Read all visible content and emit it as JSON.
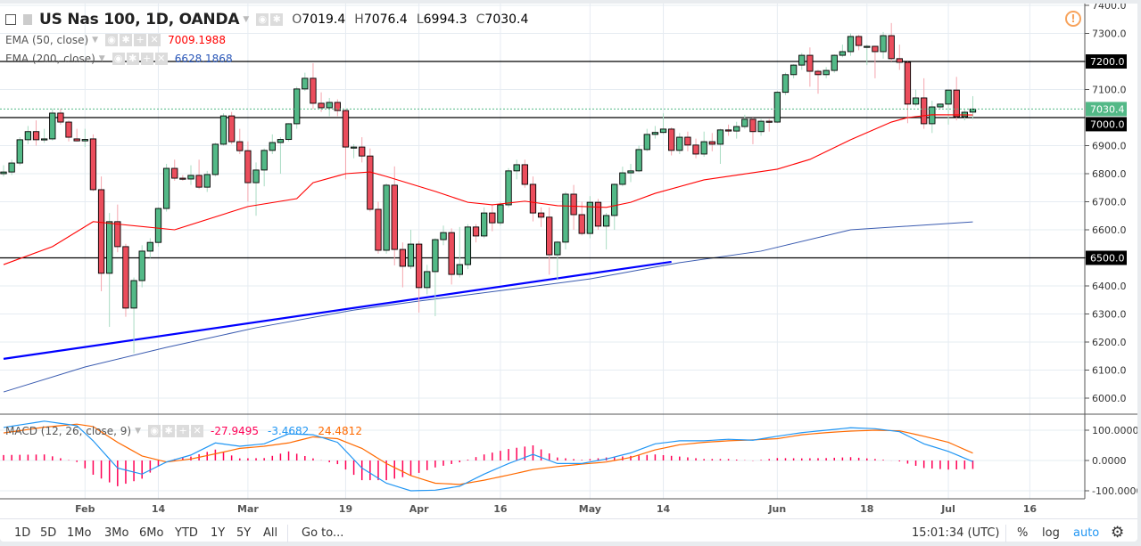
{
  "header": {
    "title": "US Nas 100, 1D, OANDA",
    "ohlc": {
      "o_label": "O",
      "o": "7019.4",
      "h_label": "H",
      "h": "7076.4",
      "l_label": "L",
      "l": "6994.3",
      "c_label": "C",
      "c": "7030.4"
    },
    "indicators": [
      {
        "label": "EMA (50, close)",
        "value": "7009.1988",
        "color": "#ff0000"
      },
      {
        "label": "EMA (200, close)",
        "value": "6628.1868",
        "color": "#2a57b8"
      }
    ],
    "macd": {
      "label": "MACD (12, 26, close, 9)",
      "hist": "-27.9495",
      "macd": "-3.4682",
      "signal": "24.4812",
      "hist_color": "#ff0055",
      "macd_color": "#2196f3",
      "signal_color": "#ff6a00"
    }
  },
  "colors": {
    "up": "#53b987",
    "down": "#eb4d5c",
    "ema50": "#ff0000",
    "ema200": "#3a5bb0",
    "trendline": "#0000ff",
    "macd": "#2196f3",
    "signal": "#ff6a00",
    "hist": "#ff0055",
    "warning": "#f7a35c",
    "accent": "#2196f3"
  },
  "chart_data": {
    "type": "candlestick",
    "price_axis": {
      "range": [
        6000,
        7400
      ],
      "ticks": [
        "7400.0",
        "7300.0",
        "7200.0",
        "7100.0",
        "7000.0",
        "6900.0",
        "6800.0",
        "6700.0",
        "6600.0",
        "6500.0",
        "6400.0",
        "6300.0",
        "6200.0",
        "6100.0",
        "6000.0"
      ]
    },
    "last_price": "7030.4",
    "horizontal_lines": [
      {
        "price": 7200,
        "label": "7200.0"
      },
      {
        "price": 7000,
        "label": "7000.0"
      },
      {
        "price": 6500,
        "label": "6500.0"
      }
    ],
    "time_ticks": [
      {
        "label": "Feb",
        "date": "02-01"
      },
      {
        "label": "14",
        "date": "02-14"
      },
      {
        "label": "Mar",
        "date": "03-01"
      },
      {
        "label": "19",
        "date": "03-19"
      },
      {
        "label": "Apr",
        "date": "04-02"
      },
      {
        "label": "16",
        "date": "04-16"
      },
      {
        "label": "May",
        "date": "05-01"
      },
      {
        "label": "14",
        "date": "05-14"
      },
      {
        "label": "Jun",
        "date": "06-01"
      },
      {
        "label": "18",
        "date": "06-18"
      },
      {
        "label": "Jul",
        "date": "07-02"
      },
      {
        "label": "16",
        "date": "07-16"
      }
    ],
    "candles_columns": [
      "date",
      "open",
      "high",
      "low",
      "close"
    ],
    "candles": [
      [
        "01-18",
        6800,
        6830,
        6790,
        6806
      ],
      [
        "01-19",
        6806,
        6850,
        6795,
        6838
      ],
      [
        "01-22",
        6838,
        6930,
        6830,
        6921
      ],
      [
        "01-23",
        6921,
        6970,
        6905,
        6950
      ],
      [
        "01-24",
        6950,
        6990,
        6900,
        6921
      ],
      [
        "01-25",
        6921,
        6960,
        6910,
        6924
      ],
      [
        "01-26",
        6924,
        7032,
        6918,
        7016
      ],
      [
        "01-29",
        7016,
        7032,
        6975,
        6984
      ],
      [
        "01-30",
        6984,
        6990,
        6915,
        6930
      ],
      [
        "01-31",
        6924,
        6960,
        6915,
        6917
      ],
      [
        "02-01",
        6917,
        6960,
        6895,
        6922
      ],
      [
        "02-02",
        6924,
        6940,
        6738,
        6743
      ],
      [
        "02-05",
        6743,
        6790,
        6381,
        6445
      ],
      [
        "02-06",
        6445,
        6660,
        6254,
        6629
      ],
      [
        "02-07",
        6629,
        6690,
        6520,
        6540
      ],
      [
        "02-08",
        6540,
        6550,
        6290,
        6321
      ],
      [
        "02-09",
        6321,
        6430,
        6160,
        6419
      ],
      [
        "02-12",
        6419,
        6545,
        6395,
        6524
      ],
      [
        "02-13",
        6524,
        6570,
        6500,
        6555
      ],
      [
        "02-14",
        6555,
        6680,
        6540,
        6676
      ],
      [
        "02-15",
        6676,
        6835,
        6665,
        6819
      ],
      [
        "02-16",
        6819,
        6850,
        6775,
        6784
      ],
      [
        "02-19",
        6784,
        6795,
        6775,
        6781
      ],
      [
        "02-20",
        6781,
        6830,
        6760,
        6794
      ],
      [
        "02-21",
        6794,
        6850,
        6745,
        6752
      ],
      [
        "02-22",
        6752,
        6810,
        6735,
        6797
      ],
      [
        "02-23",
        6797,
        6910,
        6790,
        6905
      ],
      [
        "02-26",
        6905,
        7015,
        6900,
        7006
      ],
      [
        "02-27",
        7006,
        7020,
        6905,
        6914
      ],
      [
        "02-28",
        6914,
        6960,
        6870,
        6882
      ],
      [
        "03-01",
        6882,
        6915,
        6700,
        6768
      ],
      [
        "03-02",
        6768,
        6840,
        6650,
        6813
      ],
      [
        "03-05",
        6813,
        6890,
        6755,
        6883
      ],
      [
        "03-06",
        6883,
        6940,
        6870,
        6911
      ],
      [
        "03-07",
        6911,
        6930,
        6800,
        6922
      ],
      [
        "03-08",
        6922,
        6980,
        6915,
        6978
      ],
      [
        "03-09",
        6978,
        7110,
        6960,
        7102
      ],
      [
        "03-12",
        7102,
        7160,
        7095,
        7140
      ],
      [
        "03-13",
        7140,
        7194,
        7030,
        7051
      ],
      [
        "03-14",
        7051,
        7090,
        7020,
        7035
      ],
      [
        "03-15",
        7035,
        7070,
        7005,
        7054
      ],
      [
        "03-16",
        7054,
        7065,
        7005,
        7025
      ],
      [
        "03-19",
        7025,
        7030,
        6780,
        6895
      ],
      [
        "03-20",
        6895,
        6905,
        6855,
        6895
      ],
      [
        "03-21",
        6895,
        6930,
        6840,
        6863
      ],
      [
        "03-22",
        6863,
        6890,
        6665,
        6673
      ],
      [
        "03-23",
        6673,
        6700,
        6515,
        6527
      ],
      [
        "03-26",
        6527,
        6765,
        6515,
        6759
      ],
      [
        "03-27",
        6759,
        6826,
        6473,
        6530
      ],
      [
        "03-28",
        6530,
        6555,
        6395,
        6470
      ],
      [
        "03-29",
        6470,
        6600,
        6460,
        6549
      ],
      [
        "04-02",
        6549,
        6560,
        6305,
        6394
      ],
      [
        "04-03",
        6394,
        6475,
        6370,
        6451
      ],
      [
        "04-04",
        6451,
        6570,
        6292,
        6565
      ],
      [
        "04-05",
        6565,
        6615,
        6545,
        6590
      ],
      [
        "04-06",
        6590,
        6605,
        6405,
        6441
      ],
      [
        "04-09",
        6441,
        6610,
        6430,
        6476
      ],
      [
        "04-10",
        6476,
        6620,
        6460,
        6610
      ],
      [
        "04-11",
        6610,
        6620,
        6555,
        6578
      ],
      [
        "04-12",
        6578,
        6680,
        6570,
        6660
      ],
      [
        "04-13",
        6660,
        6690,
        6595,
        6625
      ],
      [
        "04-16",
        6625,
        6700,
        6615,
        6689
      ],
      [
        "04-17",
        6689,
        6820,
        6680,
        6810
      ],
      [
        "04-18",
        6810,
        6850,
        6780,
        6832
      ],
      [
        "04-19",
        6832,
        6850,
        6750,
        6762
      ],
      [
        "04-20",
        6762,
        6790,
        6630,
        6660
      ],
      [
        "04-23",
        6660,
        6680,
        6610,
        6645
      ],
      [
        "04-24",
        6645,
        6680,
        6440,
        6511
      ],
      [
        "04-25",
        6511,
        6560,
        6420,
        6556
      ],
      [
        "04-26",
        6556,
        6735,
        6530,
        6727
      ],
      [
        "04-27",
        6727,
        6760,
        6600,
        6654
      ],
      [
        "04-30",
        6654,
        6700,
        6580,
        6587
      ],
      [
        "05-01",
        6587,
        6720,
        6570,
        6698
      ],
      [
        "05-02",
        6698,
        6710,
        6600,
        6613
      ],
      [
        "05-03",
        6613,
        6660,
        6530,
        6651
      ],
      [
        "05-04",
        6651,
        6765,
        6600,
        6762
      ],
      [
        "05-07",
        6762,
        6825,
        6755,
        6803
      ],
      [
        "05-08",
        6803,
        6835,
        6770,
        6810
      ],
      [
        "05-09",
        6810,
        6900,
        6805,
        6886
      ],
      [
        "05-10",
        6886,
        6960,
        6880,
        6940
      ],
      [
        "05-11",
        6940,
        6970,
        6925,
        6947
      ],
      [
        "05-14",
        6947,
        7015,
        6940,
        6959
      ],
      [
        "05-15",
        6959,
        6965,
        6865,
        6883
      ],
      [
        "05-16",
        6883,
        6945,
        6870,
        6930
      ],
      [
        "05-17",
        6930,
        6950,
        6880,
        6902
      ],
      [
        "05-18",
        6902,
        6925,
        6855,
        6870
      ],
      [
        "05-21",
        6870,
        6950,
        6860,
        6914
      ],
      [
        "05-22",
        6914,
        6945,
        6880,
        6905
      ],
      [
        "05-23",
        6905,
        6960,
        6835,
        6956
      ],
      [
        "05-24",
        6956,
        6975,
        6935,
        6952
      ],
      [
        "05-25",
        6952,
        6985,
        6925,
        6968
      ],
      [
        "05-28",
        6968,
        7010,
        6960,
        6994
      ],
      [
        "05-29",
        6994,
        7000,
        6905,
        6950
      ],
      [
        "05-30",
        6950,
        6995,
        6935,
        6987
      ],
      [
        "05-31",
        6987,
        6995,
        6950,
        6984
      ],
      [
        "06-01",
        6984,
        7095,
        6980,
        7090
      ],
      [
        "06-04",
        7090,
        7160,
        7080,
        7153
      ],
      [
        "06-05",
        7153,
        7190,
        7140,
        7187
      ],
      [
        "06-06",
        7187,
        7230,
        7170,
        7222
      ],
      [
        "06-07",
        7222,
        7250,
        7110,
        7165
      ],
      [
        "06-08",
        7165,
        7170,
        7085,
        7153
      ],
      [
        "06-11",
        7153,
        7180,
        7140,
        7168
      ],
      [
        "06-12",
        7168,
        7225,
        7160,
        7222
      ],
      [
        "06-13",
        7222,
        7260,
        7215,
        7235
      ],
      [
        "06-14",
        7235,
        7300,
        7220,
        7289
      ],
      [
        "06-15",
        7289,
        7295,
        7240,
        7257
      ],
      [
        "06-18",
        7254,
        7260,
        7187,
        7254
      ],
      [
        "06-19",
        7254,
        7256,
        7140,
        7235
      ],
      [
        "06-20",
        7235,
        7305,
        7210,
        7292
      ],
      [
        "06-21",
        7292,
        7337,
        7200,
        7210
      ],
      [
        "06-22",
        7210,
        7260,
        7170,
        7197
      ],
      [
        "06-25",
        7197,
        7200,
        6980,
        7048
      ],
      [
        "06-26",
        7048,
        7100,
        7040,
        7070
      ],
      [
        "06-27",
        7070,
        7140,
        6960,
        6978
      ],
      [
        "06-28",
        6978,
        7060,
        6945,
        7038
      ],
      [
        "06-29",
        7038,
        7050,
        7030,
        7048
      ],
      [
        "07-02",
        7048,
        7100,
        6975,
        7098
      ],
      [
        "07-03",
        7098,
        7145,
        6990,
        7003
      ],
      [
        "07-04",
        7003,
        7030,
        6990,
        7019
      ],
      [
        "07-05",
        7019.4,
        7076.4,
        6994.3,
        7030.4
      ]
    ],
    "ema50": [
      [
        "01-18",
        6476
      ],
      [
        "01-26",
        6540
      ],
      [
        "02-02",
        6629
      ],
      [
        "02-16",
        6600
      ],
      [
        "03-01",
        6683
      ],
      [
        "03-09",
        6711
      ],
      [
        "03-13",
        6768
      ],
      [
        "03-19",
        6800
      ],
      [
        "03-22",
        6806
      ],
      [
        "03-26",
        6790
      ],
      [
        "04-04",
        6737
      ],
      [
        "04-10",
        6698
      ],
      [
        "04-13",
        6689
      ],
      [
        "04-19",
        6702
      ],
      [
        "04-25",
        6686
      ],
      [
        "05-03",
        6680
      ],
      [
        "05-08",
        6698
      ],
      [
        "05-11",
        6730
      ],
      [
        "05-21",
        6778
      ],
      [
        "06-01",
        6816
      ],
      [
        "06-07",
        6851
      ],
      [
        "06-14",
        6921
      ],
      [
        "06-21",
        6984
      ],
      [
        "06-25",
        7000
      ],
      [
        "06-28",
        7010
      ],
      [
        "07-05",
        7009.2
      ]
    ],
    "ema200": [
      [
        "01-18",
        6022
      ],
      [
        "02-01",
        6111
      ],
      [
        "02-15",
        6181
      ],
      [
        "03-02",
        6251
      ],
      [
        "03-20",
        6314
      ],
      [
        "04-02",
        6346
      ],
      [
        "04-17",
        6387
      ],
      [
        "05-01",
        6425
      ],
      [
        "05-16",
        6483
      ],
      [
        "05-30",
        6524
      ],
      [
        "06-14",
        6600
      ],
      [
        "07-05",
        6628.2
      ]
    ],
    "trendline": [
      [
        "01-18",
        6140
      ],
      [
        "05-15",
        6486
      ]
    ],
    "macd_axis": {
      "range": [
        -130,
        145
      ],
      "ticks": [
        "100.0000",
        "0.0000",
        "-100.0000"
      ]
    },
    "macd_series": [
      [
        "01-18",
        109,
        91
      ],
      [
        "01-25",
        130,
        110
      ],
      [
        "01-31",
        115,
        120
      ],
      [
        "02-02",
        65,
        112
      ],
      [
        "02-07",
        -25,
        60
      ],
      [
        "02-12",
        -45,
        15
      ],
      [
        "02-15",
        -5,
        -5
      ],
      [
        "02-20",
        18,
        5
      ],
      [
        "02-23",
        58,
        22
      ],
      [
        "02-28",
        47,
        40
      ],
      [
        "03-05",
        55,
        47
      ],
      [
        "03-08",
        88,
        58
      ],
      [
        "03-13",
        85,
        78
      ],
      [
        "03-16",
        60,
        72
      ],
      [
        "03-21",
        -25,
        40
      ],
      [
        "03-26",
        -75,
        -10
      ],
      [
        "03-29",
        -100,
        -50
      ],
      [
        "04-04",
        -98,
        -75
      ],
      [
        "04-09",
        -85,
        -79
      ],
      [
        "04-12",
        -45,
        -65
      ],
      [
        "04-17",
        -10,
        -48
      ],
      [
        "04-20",
        20,
        -30
      ],
      [
        "04-25",
        -10,
        -20
      ],
      [
        "04-30",
        -10,
        -12
      ],
      [
        "05-03",
        5,
        -5
      ],
      [
        "05-08",
        25,
        10
      ],
      [
        "05-11",
        55,
        35
      ],
      [
        "05-16",
        65,
        52
      ],
      [
        "05-21",
        65,
        60
      ],
      [
        "05-24",
        70,
        65
      ],
      [
        "05-29",
        67,
        68
      ],
      [
        "06-01",
        80,
        72
      ],
      [
        "06-06",
        92,
        85
      ],
      [
        "06-11",
        100,
        92
      ],
      [
        "06-14",
        108,
        97
      ],
      [
        "06-19",
        105,
        100
      ],
      [
        "06-22",
        95,
        98
      ],
      [
        "06-27",
        55,
        80
      ],
      [
        "07-02",
        30,
        60
      ],
      [
        "07-05",
        -3.4682,
        24.4812
      ]
    ]
  },
  "toolbar": {
    "ranges": [
      "1D",
      "5D",
      "1Mo",
      "3Mo",
      "6Mo",
      "YTD",
      "1Y",
      "5Y",
      "All"
    ],
    "goto": "Go to...",
    "clock": "15:01:34 (UTC)",
    "percent": "%",
    "log": "log",
    "auto": "auto"
  }
}
